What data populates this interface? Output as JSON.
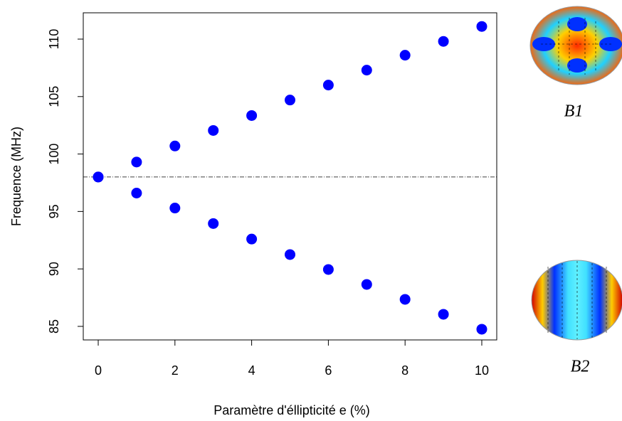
{
  "chart_data": {
    "type": "scatter",
    "x_label": "Paramètre d'éllipticité e (%)",
    "y_label": "Frequence (MHz)",
    "x": [
      0,
      1,
      2,
      3,
      4,
      5,
      6,
      7,
      8,
      9,
      10
    ],
    "series": [
      {
        "color": "#0000ff",
        "values": [
          98,
          99.3,
          100.7,
          102.05,
          103.35,
          104.7,
          106.0,
          107.3,
          108.6,
          109.8,
          111.1
        ]
      },
      {
        "color": "#0000ff",
        "values": [
          98,
          96.6,
          95.3,
          93.95,
          92.6,
          91.25,
          89.95,
          88.65,
          87.35,
          86.05,
          84.75
        ]
      }
    ],
    "hline": 98,
    "xlim": [
      -0.39,
      10.39
    ],
    "xticks": [
      0,
      2,
      4,
      6,
      8,
      10
    ],
    "ylim": [
      83.82,
      112.29
    ],
    "yticks": [
      85,
      90,
      95,
      100,
      105,
      110
    ],
    "insets": [
      {
        "label": "B1"
      },
      {
        "label": "B2"
      }
    ]
  }
}
